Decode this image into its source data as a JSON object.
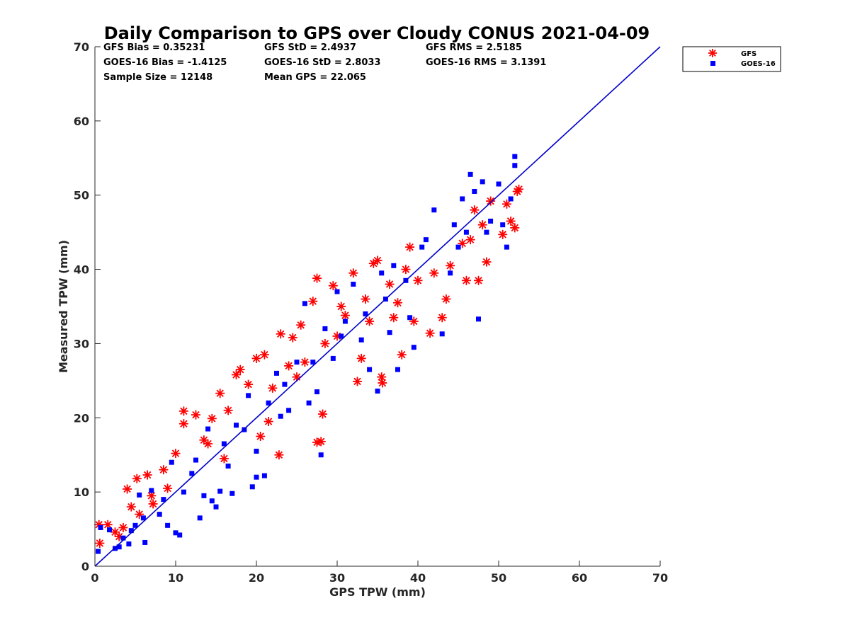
{
  "chart_data": {
    "type": "scatter",
    "title": "Daily Comparison to GPS over Cloudy CONUS 2021-04-09",
    "xlabel": "GPS TPW (mm)",
    "ylabel": "Measured TPW (mm)",
    "xlim": [
      0,
      70
    ],
    "ylim": [
      0,
      70
    ],
    "xticks": [
      "0",
      "10",
      "20",
      "30",
      "40",
      "50",
      "60",
      "70"
    ],
    "yticks": [
      "0",
      "10",
      "20",
      "30",
      "40",
      "50",
      "60",
      "70"
    ],
    "grid": false,
    "legend_position": "outside top-right",
    "stats": [
      "GFS Bias = 0.35231",
      "GFS StD = 2.4937",
      "GFS RMS = 2.5185",
      "GOES-16 Bias = -1.4125",
      "GOES-16 StD = 2.8033",
      "GOES-16 RMS = 3.1391",
      "Sample Size = 12148",
      "Mean GPS = 22.065"
    ],
    "reference_line": {
      "x": [
        0,
        70
      ],
      "y": [
        0,
        70
      ],
      "color": "#0000cc"
    },
    "series": [
      {
        "name": "GFS",
        "marker": "asterisk",
        "color": "#ff0000",
        "points": [
          [
            0.5,
            5.6
          ],
          [
            0.6,
            3.1
          ],
          [
            1.6,
            5.6
          ],
          [
            2.5,
            4.6
          ],
          [
            3.5,
            5.2
          ],
          [
            4.0,
            10.4
          ],
          [
            4.5,
            8.0
          ],
          [
            5.2,
            11.8
          ],
          [
            6.5,
            12.3
          ],
          [
            7.2,
            8.4
          ],
          [
            8.5,
            13.0
          ],
          [
            10.0,
            15.2
          ],
          [
            11.0,
            20.9
          ],
          [
            11.0,
            19.2
          ],
          [
            12.5,
            20.4
          ],
          [
            14.0,
            16.5
          ],
          [
            14.5,
            19.9
          ],
          [
            15.5,
            23.3
          ],
          [
            16.5,
            21.0
          ],
          [
            17.5,
            25.8
          ],
          [
            18.0,
            26.5
          ],
          [
            19.0,
            24.5
          ],
          [
            20.0,
            28.0
          ],
          [
            21.0,
            28.5
          ],
          [
            21.5,
            19.5
          ],
          [
            22.0,
            24.0
          ],
          [
            22.8,
            15.0
          ],
          [
            23.0,
            31.3
          ],
          [
            24.5,
            30.8
          ],
          [
            25.0,
            25.5
          ],
          [
            25.5,
            32.5
          ],
          [
            26.0,
            27.5
          ],
          [
            27.0,
            35.7
          ],
          [
            27.5,
            16.7
          ],
          [
            28.0,
            16.8
          ],
          [
            28.2,
            20.5
          ],
          [
            28.5,
            30.0
          ],
          [
            27.5,
            38.8
          ],
          [
            29.5,
            37.8
          ],
          [
            30.5,
            35.0
          ],
          [
            31.0,
            33.8
          ],
          [
            32.0,
            39.5
          ],
          [
            32.5,
            24.9
          ],
          [
            33.0,
            28.0
          ],
          [
            34.0,
            33.0
          ],
          [
            34.5,
            40.8
          ],
          [
            35.0,
            41.2
          ],
          [
            35.5,
            25.5
          ],
          [
            35.6,
            24.7
          ],
          [
            36.5,
            38.0
          ],
          [
            37.5,
            35.5
          ],
          [
            38.0,
            28.5
          ],
          [
            38.5,
            40.0
          ],
          [
            39.0,
            43.0
          ],
          [
            39.5,
            33.0
          ],
          [
            40.0,
            38.5
          ],
          [
            41.5,
            31.4
          ],
          [
            42.0,
            39.5
          ],
          [
            43.0,
            33.5
          ],
          [
            43.5,
            36.0
          ],
          [
            44.0,
            40.5
          ],
          [
            45.5,
            43.5
          ],
          [
            46.0,
            38.5
          ],
          [
            46.5,
            44.0
          ],
          [
            47.0,
            48.0
          ],
          [
            47.5,
            38.5
          ],
          [
            48.0,
            46.0
          ],
          [
            48.5,
            41.0
          ],
          [
            49.0,
            49.2
          ],
          [
            50.5,
            44.7
          ],
          [
            51.0,
            48.8
          ],
          [
            51.5,
            46.5
          ],
          [
            52.0,
            45.6
          ],
          [
            52.3,
            50.5
          ],
          [
            52.5,
            50.8
          ],
          [
            13.5,
            17.0
          ],
          [
            16.0,
            14.5
          ],
          [
            20.5,
            17.5
          ],
          [
            24.0,
            27.0
          ],
          [
            30.0,
            31.0
          ],
          [
            33.5,
            36.0
          ],
          [
            37.0,
            33.5
          ],
          [
            9.0,
            10.5
          ],
          [
            7.0,
            9.5
          ],
          [
            5.5,
            7.0
          ],
          [
            3.0,
            4.0
          ]
        ]
      },
      {
        "name": "GOES-16",
        "marker": "square",
        "color": "#0000ff",
        "points": [
          [
            0.4,
            2.0
          ],
          [
            0.7,
            5.2
          ],
          [
            1.8,
            4.9
          ],
          [
            2.5,
            2.4
          ],
          [
            3.0,
            2.6
          ],
          [
            3.5,
            3.8
          ],
          [
            4.2,
            3.0
          ],
          [
            5.0,
            5.5
          ],
          [
            5.5,
            9.6
          ],
          [
            6.2,
            3.2
          ],
          [
            7.0,
            10.2
          ],
          [
            8.0,
            7.0
          ],
          [
            9.0,
            5.5
          ],
          [
            9.5,
            14.0
          ],
          [
            10.5,
            4.2
          ],
          [
            11.0,
            10.0
          ],
          [
            12.5,
            14.3
          ],
          [
            13.5,
            9.5
          ],
          [
            14.0,
            18.5
          ],
          [
            14.5,
            8.8
          ],
          [
            15.5,
            10.1
          ],
          [
            16.5,
            13.5
          ],
          [
            17.0,
            9.8
          ],
          [
            18.5,
            18.4
          ],
          [
            19.0,
            23.0
          ],
          [
            19.5,
            10.7
          ],
          [
            20.0,
            15.5
          ],
          [
            21.0,
            12.2
          ],
          [
            22.5,
            26.0
          ],
          [
            23.0,
            20.2
          ],
          [
            24.0,
            21.0
          ],
          [
            25.0,
            27.5
          ],
          [
            26.0,
            35.4
          ],
          [
            26.5,
            22.0
          ],
          [
            27.5,
            23.5
          ],
          [
            28.0,
            15.0
          ],
          [
            28.5,
            32.0
          ],
          [
            29.5,
            28.0
          ],
          [
            30.0,
            37.0
          ],
          [
            31.0,
            33.0
          ],
          [
            32.0,
            38.0
          ],
          [
            33.0,
            30.5
          ],
          [
            34.0,
            26.5
          ],
          [
            35.0,
            23.6
          ],
          [
            35.5,
            39.5
          ],
          [
            36.5,
            31.5
          ],
          [
            37.0,
            40.5
          ],
          [
            37.5,
            26.5
          ],
          [
            38.5,
            38.5
          ],
          [
            39.0,
            33.5
          ],
          [
            39.5,
            29.5
          ],
          [
            40.5,
            43.0
          ],
          [
            41.0,
            44.0
          ],
          [
            42.0,
            48.0
          ],
          [
            43.0,
            31.3
          ],
          [
            44.0,
            39.5
          ],
          [
            44.5,
            46.0
          ],
          [
            45.0,
            43.0
          ],
          [
            45.5,
            49.5
          ],
          [
            46.0,
            45.0
          ],
          [
            46.5,
            52.8
          ],
          [
            47.0,
            50.5
          ],
          [
            47.5,
            33.3
          ],
          [
            48.0,
            51.8
          ],
          [
            48.5,
            45.0
          ],
          [
            49.0,
            46.5
          ],
          [
            50.0,
            51.5
          ],
          [
            50.5,
            46.0
          ],
          [
            51.0,
            43.0
          ],
          [
            51.5,
            49.5
          ],
          [
            52.0,
            55.2
          ],
          [
            52.0,
            54.0
          ],
          [
            16.0,
            16.5
          ],
          [
            17.5,
            19.0
          ],
          [
            21.5,
            22.0
          ],
          [
            23.5,
            24.5
          ],
          [
            27.0,
            27.5
          ],
          [
            30.5,
            31.0
          ],
          [
            33.5,
            34.0
          ],
          [
            36.0,
            36.0
          ],
          [
            12.0,
            12.5
          ],
          [
            8.5,
            9.0
          ],
          [
            6.0,
            6.5
          ],
          [
            4.5,
            4.8
          ],
          [
            10.0,
            4.5
          ],
          [
            13.0,
            6.5
          ],
          [
            15.0,
            8.0
          ],
          [
            20.0,
            12.0
          ]
        ]
      }
    ]
  }
}
